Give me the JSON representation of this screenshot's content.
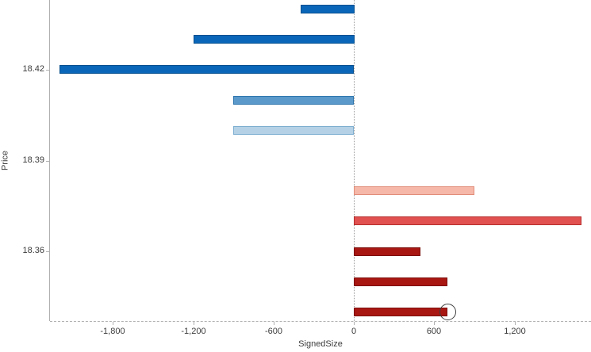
{
  "chart_data": {
    "type": "bar",
    "orientation": "horizontal",
    "title": "",
    "xlabel": "SignedSize",
    "ylabel": "Price",
    "grid": false,
    "zero_line": true,
    "xlim": [
      -2270,
      1770
    ],
    "ylim": [
      18.337,
      18.443
    ],
    "x_ticks": [
      {
        "label": "-1,800",
        "value": -1800
      },
      {
        "label": "-1,200",
        "value": -1200
      },
      {
        "label": "-600",
        "value": -600
      },
      {
        "label": "0",
        "value": 0
      },
      {
        "label": "600",
        "value": 600
      },
      {
        "label": "1,200",
        "value": 1200
      }
    ],
    "y_ticks": [
      {
        "label": "18.42",
        "value": 18.42
      },
      {
        "label": "18.39",
        "value": 18.39
      },
      {
        "label": "18.36",
        "value": 18.36
      }
    ],
    "points": [
      {
        "price": 18.44,
        "value": -400,
        "fill": "#0a66b8",
        "border": "#07508f"
      },
      {
        "price": 18.43,
        "value": -1200,
        "fill": "#0a66b8",
        "border": "#07508f"
      },
      {
        "price": 18.42,
        "value": -2200,
        "fill": "#0a66b8",
        "border": "#07508f"
      },
      {
        "price": 18.41,
        "value": -900,
        "fill": "#5b99cb",
        "border": "#2e75ad"
      },
      {
        "price": 18.4,
        "value": -900,
        "fill": "#b5d1e5",
        "border": "#7fafd1"
      },
      {
        "price": 18.38,
        "value": 900,
        "fill": "#f5b8a9",
        "border": "#e18d7a"
      },
      {
        "price": 18.37,
        "value": 1700,
        "fill": "#e05150",
        "border": "#b52f2d"
      },
      {
        "price": 18.36,
        "value": 500,
        "fill": "#a81712",
        "border": "#7c100c"
      },
      {
        "price": 18.35,
        "value": 700,
        "fill": "#a81712",
        "border": "#7c100c"
      },
      {
        "price": 18.34,
        "value": 700,
        "fill": "#a81712",
        "border": "#7c100c"
      }
    ],
    "annotation": {
      "type": "circle",
      "point_index": 9,
      "radius": 10.5,
      "color": "#3f3f3f"
    },
    "colors": {
      "axis_line": "#b0b0b0",
      "zero_line": "#9b9b9b",
      "text": "#3c3c3c",
      "background": "#ffffff"
    }
  }
}
